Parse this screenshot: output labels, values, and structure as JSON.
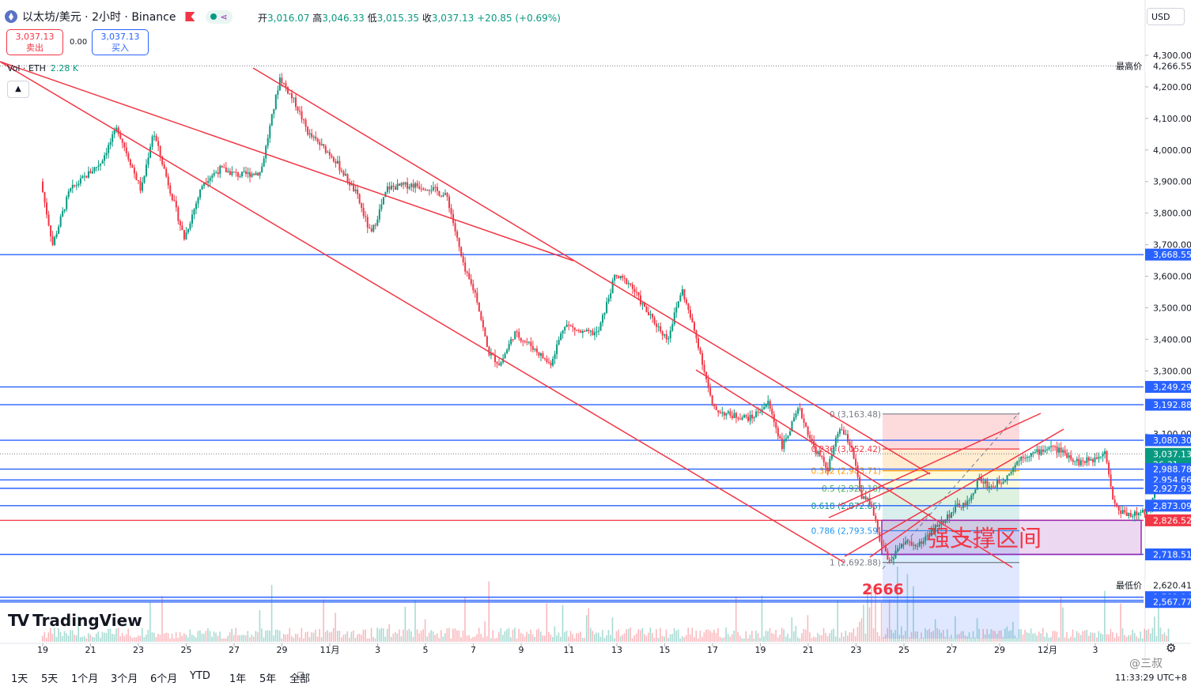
{
  "header": {
    "symbol": "以太坊/美元 · 2小时 · Binance",
    "open_label": "开",
    "open": "3,016.07",
    "high_label": "高",
    "high": "3,046.33",
    "low_label": "低",
    "low": "3,015.35",
    "close_label": "收",
    "close": "3,037.13",
    "change": "+20.85 (+0.69%)",
    "currency": "USD"
  },
  "trade": {
    "sell_price": "3,037.13",
    "sell_label": "卖出",
    "spread": "0.00",
    "buy_price": "3,037.13",
    "buy_label": "买入"
  },
  "volume": {
    "label": "Vol · ETH",
    "value": "2.28 K"
  },
  "logo": "TradingView",
  "timeframes": [
    "1天",
    "5天",
    "1个月",
    "3个月",
    "6个月",
    "YTD",
    "1年",
    "5年",
    "全部"
  ],
  "clock": "11:33:29 UTC+8",
  "watermark": "@三叔",
  "colors": {
    "up": "#089981",
    "down": "#f23645",
    "accent": "#2962ff",
    "channel": "#f23645",
    "zone": "#9c27b0"
  },
  "chart_data": {
    "type": "candlestick",
    "ylim": [
      2540,
      4320
    ],
    "x_tick_labels": [
      "19",
      "21",
      "23",
      "25",
      "27",
      "29",
      "11月",
      "3",
      "5",
      "7",
      "9",
      "11",
      "13",
      "15",
      "17",
      "19",
      "21",
      "23",
      "25",
      "27",
      "29",
      "12月",
      "3"
    ],
    "y_tick_labels": [
      "4,300.00",
      "4,200.00",
      "4,100.00",
      "4,000.00",
      "3,900.00",
      "3,800.00",
      "3,700.00",
      "3,600.00",
      "3,500.00",
      "3,400.00",
      "3,300.00",
      "3,100.00"
    ],
    "key_points": [
      {
        "x": 0,
        "y": 3900
      },
      {
        "x": 0.5,
        "y": 3700
      },
      {
        "x": 1.2,
        "y": 3870
      },
      {
        "x": 2.5,
        "y": 3960
      },
      {
        "x": 3.2,
        "y": 4070
      },
      {
        "x": 4.2,
        "y": 3870
      },
      {
        "x": 4.7,
        "y": 4060
      },
      {
        "x": 5.5,
        "y": 3850
      },
      {
        "x": 6.0,
        "y": 3720
      },
      {
        "x": 6.8,
        "y": 3900
      },
      {
        "x": 7.5,
        "y": 3940
      },
      {
        "x": 8.3,
        "y": 3920
      },
      {
        "x": 9.2,
        "y": 3930
      },
      {
        "x": 10.0,
        "y": 4230
      },
      {
        "x": 10.7,
        "y": 4140
      },
      {
        "x": 11.2,
        "y": 4050
      },
      {
        "x": 12.2,
        "y": 3980
      },
      {
        "x": 13.2,
        "y": 3860
      },
      {
        "x": 13.8,
        "y": 3730
      },
      {
        "x": 14.5,
        "y": 3880
      },
      {
        "x": 15.5,
        "y": 3890
      },
      {
        "x": 16.3,
        "y": 3880
      },
      {
        "x": 17.0,
        "y": 3850
      },
      {
        "x": 17.7,
        "y": 3620
      },
      {
        "x": 18.2,
        "y": 3540
      },
      {
        "x": 18.7,
        "y": 3360
      },
      {
        "x": 19.2,
        "y": 3320
      },
      {
        "x": 19.8,
        "y": 3420
      },
      {
        "x": 20.5,
        "y": 3380
      },
      {
        "x": 21.3,
        "y": 3320
      },
      {
        "x": 21.9,
        "y": 3450
      },
      {
        "x": 22.6,
        "y": 3420
      },
      {
        "x": 23.3,
        "y": 3420
      },
      {
        "x": 24.0,
        "y": 3600
      },
      {
        "x": 24.6,
        "y": 3580
      },
      {
        "x": 25.3,
        "y": 3490
      },
      {
        "x": 26.2,
        "y": 3400
      },
      {
        "x": 26.8,
        "y": 3560
      },
      {
        "x": 27.5,
        "y": 3380
      },
      {
        "x": 28.1,
        "y": 3180
      },
      {
        "x": 28.8,
        "y": 3160
      },
      {
        "x": 29.7,
        "y": 3150
      },
      {
        "x": 30.4,
        "y": 3200
      },
      {
        "x": 31.0,
        "y": 3060
      },
      {
        "x": 31.7,
        "y": 3180
      },
      {
        "x": 32.3,
        "y": 3060
      },
      {
        "x": 32.9,
        "y": 2990
      },
      {
        "x": 33.4,
        "y": 3120
      },
      {
        "x": 33.9,
        "y": 3060
      },
      {
        "x": 34.3,
        "y": 2900
      },
      {
        "x": 34.7,
        "y": 2880
      },
      {
        "x": 35.1,
        "y": 2760
      },
      {
        "x": 35.5,
        "y": 2690
      },
      {
        "x": 36.0,
        "y": 2760
      },
      {
        "x": 36.6,
        "y": 2740
      },
      {
        "x": 37.2,
        "y": 2790
      },
      {
        "x": 37.8,
        "y": 2830
      },
      {
        "x": 38.3,
        "y": 2870
      },
      {
        "x": 38.8,
        "y": 2880
      },
      {
        "x": 39.2,
        "y": 2960
      },
      {
        "x": 39.7,
        "y": 2930
      },
      {
        "x": 40.3,
        "y": 2960
      },
      {
        "x": 41.0,
        "y": 3030
      },
      {
        "x": 41.6,
        "y": 3040
      },
      {
        "x": 42.2,
        "y": 3060
      },
      {
        "x": 42.8,
        "y": 3040
      },
      {
        "x": 43.4,
        "y": 3010
      },
      {
        "x": 44.0,
        "y": 3020
      },
      {
        "x": 44.5,
        "y": 3050
      },
      {
        "x": 44.8,
        "y": 2900
      },
      {
        "x": 45.0,
        "y": 2860
      },
      {
        "x": 45.6,
        "y": 2845
      },
      {
        "x": 46.1,
        "y": 2850
      },
      {
        "x": 46.4,
        "y": 2870
      },
      {
        "x": 46.7,
        "y": 3010
      },
      {
        "x": 47.1,
        "y": 3037
      }
    ],
    "right_axis_labels": [
      {
        "text": "最高价",
        "value": "4,266.55",
        "style": "hi"
      },
      {
        "text": "",
        "value": "3,668.55",
        "style": "blue"
      },
      {
        "text": "",
        "value": "3,249.29",
        "style": "blue"
      },
      {
        "text": "",
        "value": "3,192.88",
        "style": "blue"
      },
      {
        "text": "",
        "value": "3,080.30",
        "style": "blue"
      },
      {
        "text": "",
        "value": "3,037.13",
        "style": "price",
        "sub": "26:31"
      },
      {
        "text": "",
        "value": "2,988.78",
        "style": "blue"
      },
      {
        "text": "",
        "value": "2,954.66",
        "style": "blue"
      },
      {
        "text": "",
        "value": "2,927.93",
        "style": "blue"
      },
      {
        "text": "",
        "value": "2,873.09",
        "style": "blue"
      },
      {
        "text": "",
        "value": "2,826.52",
        "style": "red"
      },
      {
        "text": "",
        "value": "2,718.51",
        "style": "blue"
      },
      {
        "text": "最低价",
        "value": "2,620.41",
        "style": "hi"
      },
      {
        "text": "",
        "value": "2,582.94",
        "style": "blue"
      },
      {
        "text": "",
        "value": "2,573.19",
        "style": "blue"
      },
      {
        "text": "",
        "value": "2,567.77",
        "style": "blue"
      }
    ],
    "horizontal_lines": [
      3668.55,
      3249.29,
      3192.88,
      3080.3,
      2988.78,
      2954.66,
      2927.93,
      2873.09,
      2718.51,
      2582.94,
      2573.19,
      2567.77
    ],
    "fib_levels": [
      {
        "ratio": "0",
        "value": "3,163.48"
      },
      {
        "ratio": "0.236",
        "value": "3,052.42"
      },
      {
        "ratio": "0.382",
        "value": "2,983.71"
      },
      {
        "ratio": "0.5",
        "value": "2,928.18"
      },
      {
        "ratio": "0.618",
        "value": "2,872.65"
      },
      {
        "ratio": "0.786",
        "value": "2,793.59"
      },
      {
        "ratio": "1",
        "value": "2,692.88"
      }
    ],
    "annotations": {
      "low_label": "2666",
      "zone_label": "强支撑区间"
    }
  }
}
